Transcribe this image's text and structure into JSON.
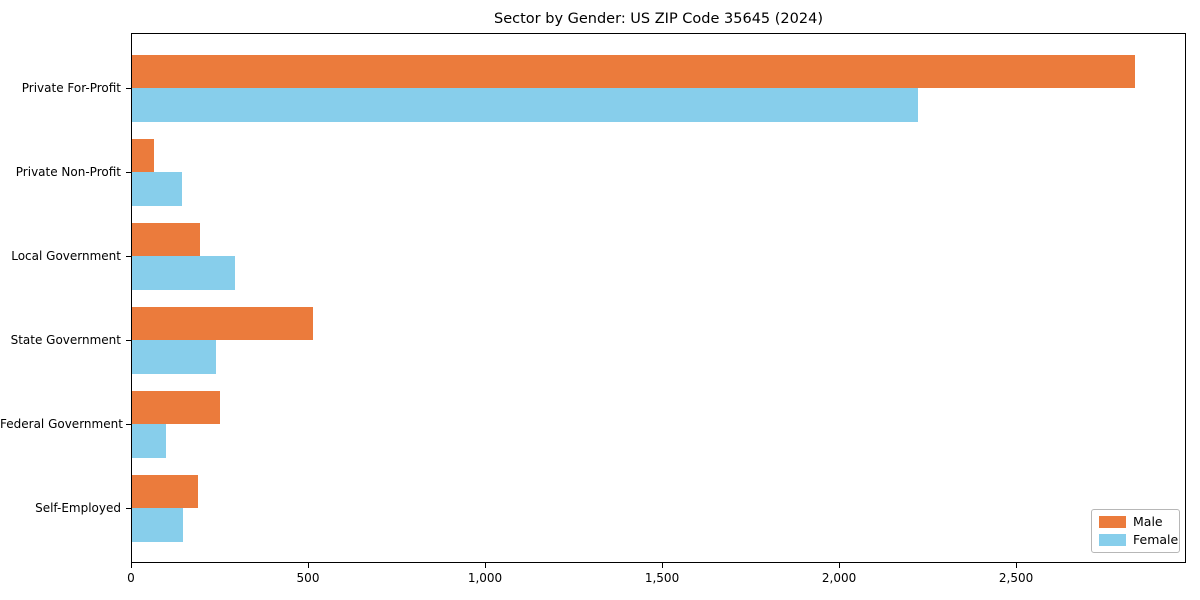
{
  "figure": {
    "background": "#ffffff"
  },
  "chart_data": {
    "type": "bar",
    "orientation": "horizontal",
    "title": "Sector by Gender: US ZIP Code 35645 (2024)",
    "categories": [
      "Private For-Profit",
      "Private Non-Profit",
      "Local Government",
      "State Government",
      "Federal Government",
      "Self-Employed"
    ],
    "series": [
      {
        "name": "Male",
        "color": "#EB7B3C",
        "values": [
          2836,
          66,
          195,
          515,
          250,
          188
        ]
      },
      {
        "name": "Female",
        "color": "#87CEEB",
        "values": [
          2223,
          145,
          294,
          240,
          99,
          148
        ]
      }
    ],
    "xlabel": "",
    "ylabel": "",
    "xlim": [
      0,
      2980
    ],
    "x_ticks": [
      {
        "value": 0,
        "label": "0"
      },
      {
        "value": 500,
        "label": "500"
      },
      {
        "value": 1000,
        "label": "1,000"
      },
      {
        "value": 1500,
        "label": "1,500"
      },
      {
        "value": 2000,
        "label": "2,000"
      },
      {
        "value": 2500,
        "label": "2,500"
      }
    ],
    "grid": false,
    "legend": {
      "position": "lower right"
    }
  }
}
